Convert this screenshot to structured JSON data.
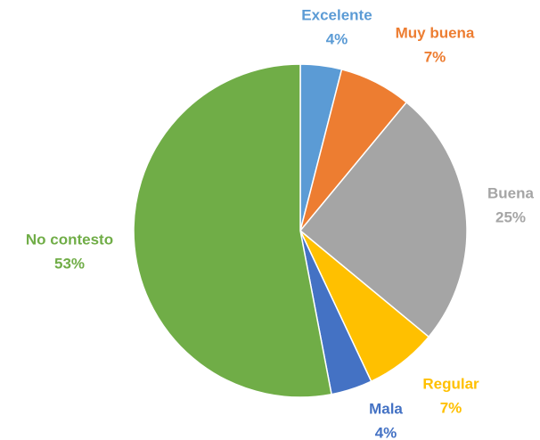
{
  "chart_data": {
    "type": "pie",
    "categories": [
      "Excelente",
      "Muy buena",
      "Buena",
      "Regular",
      "Mala",
      "No contesto"
    ],
    "values": [
      4,
      7,
      25,
      7,
      4,
      53
    ],
    "value_labels": [
      "4%",
      "7%",
      "25%",
      "7%",
      "4%",
      "53%"
    ],
    "colors": [
      "#5b9bd5",
      "#ed7d31",
      "#a5a5a5",
      "#ffc000",
      "#4472c4",
      "#70ad47"
    ]
  }
}
